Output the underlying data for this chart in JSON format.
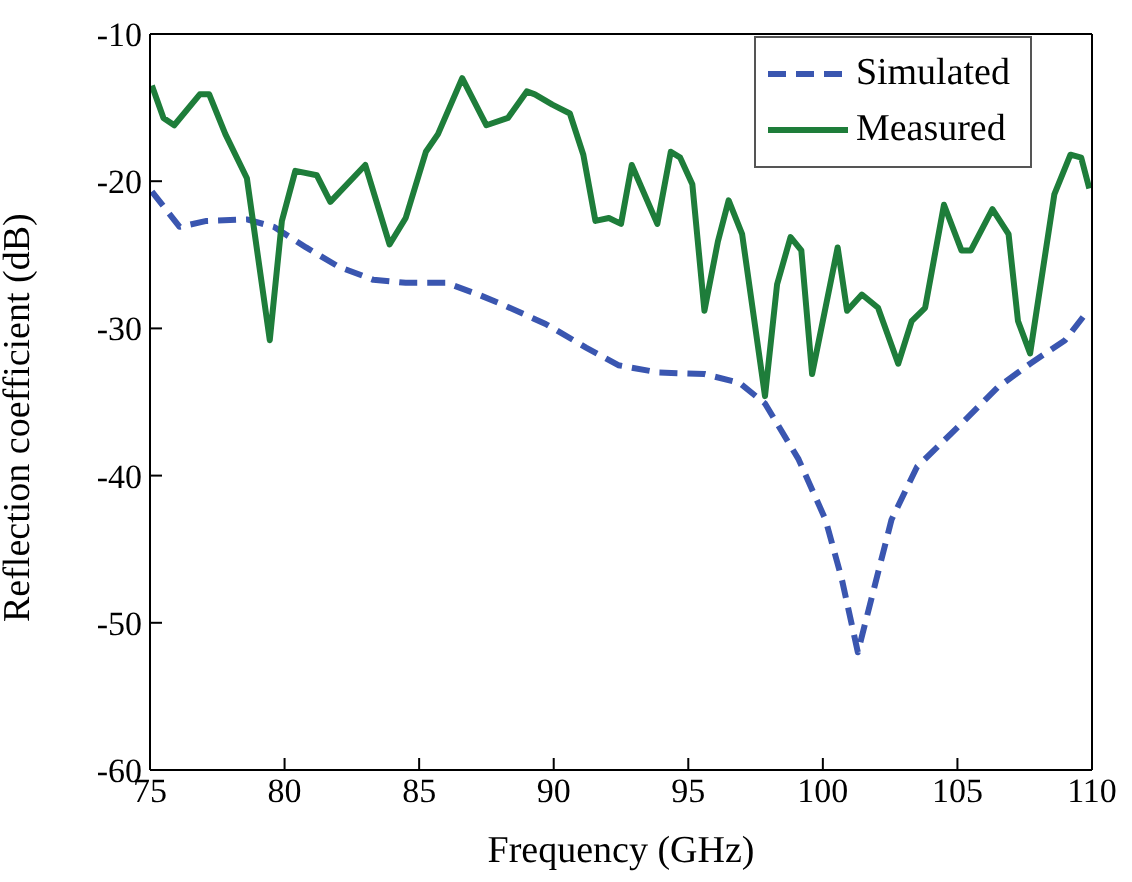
{
  "chart_data": {
    "type": "line",
    "xlabel": "Frequency (GHz)",
    "ylabel": "Reflection coefficient (dB)",
    "xlim": [
      75,
      110
    ],
    "xticks": [
      75,
      80,
      85,
      90,
      95,
      100,
      105,
      110
    ],
    "ylim": [
      -60,
      -10
    ],
    "yticks": [
      -60,
      -50,
      -40,
      -30,
      -20,
      -10
    ],
    "grid": false,
    "legend": "top right",
    "marker": "none",
    "series": [
      {
        "name": "Simulated",
        "color": "#3a56b0",
        "line_style": "dashed",
        "x": [
          75.07,
          76.1,
          77.1,
          78.6,
          79.6,
          80.8,
          82.0,
          83.3,
          84.5,
          86.0,
          87.2,
          88.0,
          89.7,
          91.2,
          92.4,
          93.9,
          95.6,
          96.9,
          97.85,
          99.1,
          100.1,
          100.7,
          101.3,
          101.8,
          102.55,
          103.5,
          105.3,
          106.5,
          107.7,
          109.0,
          109.85
        ],
        "values": [
          -20.7,
          -23.1,
          -22.7,
          -22.6,
          -23.1,
          -24.5,
          -25.8,
          -26.7,
          -26.9,
          -26.9,
          -27.7,
          -28.3,
          -29.7,
          -31.3,
          -32.5,
          -33,
          -33.1,
          -33.7,
          -35.1,
          -38.9,
          -43,
          -47,
          -52,
          -48.4,
          -43,
          -39.4,
          -36.2,
          -34,
          -32.4,
          -30.8,
          -28.8
        ]
      },
      {
        "name": "Measured",
        "color": "#1e7d3a",
        "line_style": "solid",
        "x": [
          75.07,
          75.5,
          75.9,
          76.85,
          77.2,
          77.8,
          78.6,
          79.45,
          79.9,
          80.4,
          81.2,
          81.7,
          83.0,
          83.9,
          84.5,
          85.25,
          85.7,
          86.6,
          87.5,
          88.3,
          89.0,
          89.3,
          89.95,
          90.6,
          91.1,
          91.55,
          92.05,
          92.5,
          92.9,
          93.85,
          94.35,
          94.7,
          95.15,
          95.6,
          96.1,
          96.5,
          97.0,
          97.85,
          98.3,
          98.8,
          99.2,
          99.6,
          100.55,
          100.9,
          101.45,
          102.05,
          102.8,
          103.3,
          103.8,
          104.5,
          105.15,
          105.5,
          106.3,
          106.9,
          107.25,
          107.7,
          108.6,
          109.2,
          109.6,
          109.9
        ],
        "values": [
          -13.5,
          -15.7,
          -16.2,
          -14.1,
          -14.1,
          -16.8,
          -19.8,
          -30.8,
          -22.7,
          -19.3,
          -19.6,
          -21.4,
          -18.9,
          -24.3,
          -22.5,
          -18,
          -16.8,
          -13,
          -16.2,
          -15.7,
          -13.9,
          -14.1,
          -14.8,
          -15.4,
          -18.2,
          -22.7,
          -22.5,
          -22.9,
          -18.9,
          -22.9,
          -18,
          -18.4,
          -20.2,
          -28.8,
          -24.1,
          -21.3,
          -23.6,
          -34.6,
          -27,
          -23.8,
          -24.7,
          -33.1,
          -24.5,
          -28.8,
          -27.7,
          -28.6,
          -32.4,
          -29.5,
          -28.6,
          -21.6,
          -24.7,
          -24.7,
          -21.9,
          -23.6,
          -29.5,
          -31.7,
          -20.9,
          -18.2,
          -18.4,
          -20.5
        ]
      }
    ]
  }
}
